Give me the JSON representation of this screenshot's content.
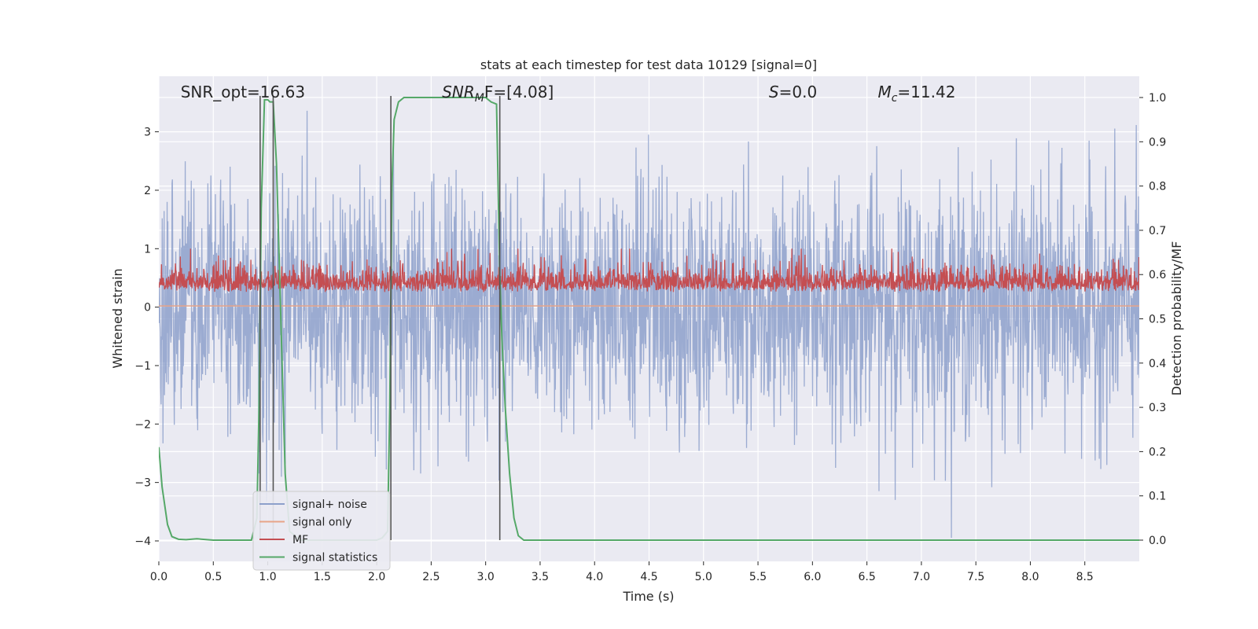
{
  "chart_data": {
    "type": "line",
    "title": "stats at each timestep for test data 10129 [signal=0]",
    "xlabel": "Time (s)",
    "ylabel": "Whitened strain",
    "y2label": "Detection probability/MF",
    "xlim": [
      0,
      9.0
    ],
    "ylim": [
      -4.35,
      3.95
    ],
    "y2lim": [
      -0.048,
      1.048
    ],
    "x_ticks": [
      0.0,
      0.5,
      1.0,
      1.5,
      2.0,
      2.5,
      3.0,
      3.5,
      4.0,
      4.5,
      5.0,
      5.5,
      6.0,
      6.5,
      7.0,
      7.5,
      8.0,
      8.5
    ],
    "y_ticks": [
      -4,
      -3,
      -2,
      -1,
      0,
      1,
      2,
      3
    ],
    "y2_ticks": [
      0.0,
      0.1,
      0.2,
      0.3,
      0.4,
      0.5,
      0.6,
      0.7,
      0.8,
      0.9,
      1.0
    ],
    "grid": true,
    "legend_position": "lower-left",
    "annotations": [
      {
        "text": "SNR_opt=16.63",
        "x": 0.2
      },
      {
        "pre": "SNR",
        "sub": "M",
        "post": "F=[4.08]",
        "x": 2.6
      },
      {
        "pre": "S",
        "post": "=0.0",
        "x": 5.6
      },
      {
        "pre": "M",
        "sub": "c",
        "post": "=11.42",
        "x": 6.6
      }
    ],
    "vertical_lines": [
      0.93,
      1.05,
      2.13,
      3.13
    ],
    "series": [
      {
        "name": "signal+ noise",
        "color": "#8da0cb",
        "kind": "noise",
        "alpha": 0.85
      },
      {
        "name": "signal only",
        "color": "#e8a488",
        "kind": "flat",
        "value": 0.02
      },
      {
        "name": "MF",
        "color": "#c44e52",
        "kind": "mf"
      },
      {
        "name": "signal statistics",
        "color": "#55a868",
        "axis": "right",
        "x": [
          0.0,
          0.03,
          0.08,
          0.12,
          0.18,
          0.25,
          0.35,
          0.5,
          0.7,
          0.85,
          0.9,
          0.92,
          0.94,
          0.97,
          1.0,
          1.02,
          1.05,
          1.08,
          1.12,
          1.16,
          1.2,
          1.3,
          1.5,
          1.8,
          2.0,
          2.05,
          2.1,
          2.12,
          2.14,
          2.16,
          2.2,
          2.25,
          2.3,
          2.5,
          2.8,
          3.0,
          3.05,
          3.1,
          3.13,
          3.15,
          3.18,
          3.22,
          3.26,
          3.3,
          3.35,
          3.5,
          4.0,
          5.0,
          6.0,
          7.0,
          8.0,
          9.0
        ],
        "y": [
          0.21,
          0.12,
          0.035,
          0.008,
          0.002,
          0.001,
          0.003,
          0.0,
          0.0,
          0.0,
          0.05,
          0.3,
          0.75,
          0.995,
          0.995,
          0.99,
          0.99,
          0.85,
          0.5,
          0.15,
          0.02,
          0.0,
          0.0,
          0.0,
          0.0,
          0.005,
          0.02,
          0.3,
          0.8,
          0.95,
          0.99,
          1.0,
          1.0,
          1.0,
          1.0,
          1.0,
          0.99,
          0.985,
          0.6,
          0.45,
          0.3,
          0.15,
          0.05,
          0.01,
          0.0,
          0.0,
          0.0,
          0.0,
          0.0,
          0.0,
          0.0,
          0.0
        ]
      }
    ]
  }
}
